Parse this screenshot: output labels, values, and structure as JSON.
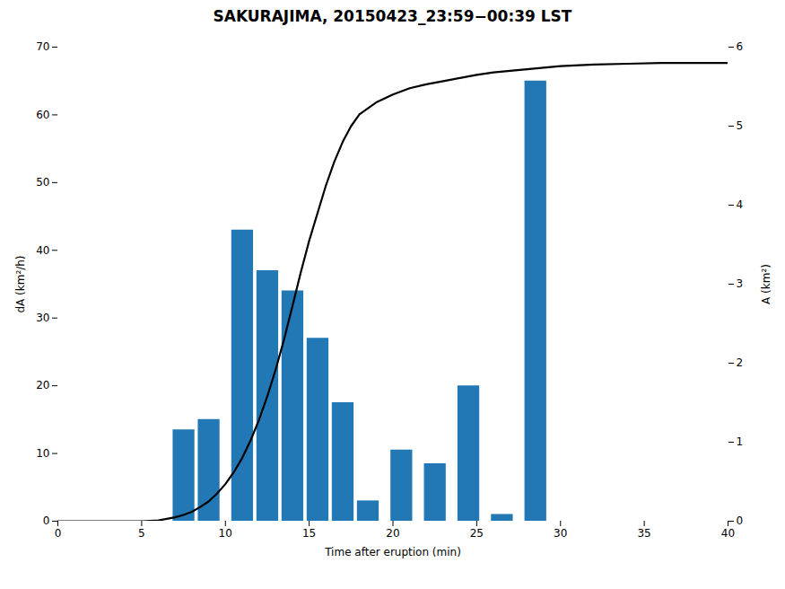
{
  "chart_data": {
    "type": "bar",
    "title": "SAKURAJIMA, 20150423_23:59−00:39 LST",
    "xlabel": "Time after eruption (min)",
    "ylabel": "dA (km²/h)",
    "y2label": "A (km²)",
    "xlim": [
      0,
      40
    ],
    "xticks": [
      0,
      5,
      10,
      15,
      20,
      25,
      30,
      35,
      40
    ],
    "ylim": [
      0,
      70
    ],
    "yticks": [
      0,
      10,
      20,
      30,
      40,
      50,
      60,
      70
    ],
    "y2lim": [
      0,
      6
    ],
    "y2ticks": [
      0,
      1,
      2,
      3,
      4,
      5,
      6
    ],
    "grid": false,
    "series": [
      {
        "type": "bar",
        "color": "#2278B5",
        "x": [
          7.5,
          9.0,
          11.0,
          12.5,
          14.0,
          15.5,
          17.0,
          18.5,
          20.5,
          22.5,
          24.5,
          26.5,
          28.5,
          30.0,
          35.5,
          37.0
        ],
        "values": [
          13.5,
          15.0,
          43.0,
          37.0,
          34.0,
          27.0,
          17.5,
          3.0,
          10.5,
          8.5,
          20.0,
          1.0,
          65.0,
          0.0,
          0.0,
          0.0
        ]
      },
      {
        "type": "line",
        "color": "#000000",
        "axis": "y2",
        "x": [
          0,
          5,
          6,
          7,
          7.5,
          8,
          8.5,
          9,
          9.5,
          10,
          10.5,
          11,
          11.5,
          12,
          12.5,
          13,
          13.5,
          14,
          14.5,
          15,
          15.5,
          16,
          16.5,
          17,
          17.5,
          18,
          19,
          20,
          21,
          22,
          23,
          24,
          25,
          26,
          27,
          28,
          29,
          30,
          32,
          34,
          36,
          38,
          40
        ],
        "values": [
          0,
          0,
          0.01,
          0.05,
          0.08,
          0.12,
          0.18,
          0.25,
          0.35,
          0.47,
          0.62,
          0.8,
          1.02,
          1.28,
          1.58,
          1.92,
          2.3,
          2.72,
          3.15,
          3.55,
          3.9,
          4.25,
          4.55,
          4.8,
          5.0,
          5.15,
          5.3,
          5.4,
          5.48,
          5.53,
          5.57,
          5.61,
          5.65,
          5.68,
          5.7,
          5.72,
          5.74,
          5.76,
          5.78,
          5.79,
          5.8,
          5.8,
          5.8
        ]
      }
    ]
  }
}
